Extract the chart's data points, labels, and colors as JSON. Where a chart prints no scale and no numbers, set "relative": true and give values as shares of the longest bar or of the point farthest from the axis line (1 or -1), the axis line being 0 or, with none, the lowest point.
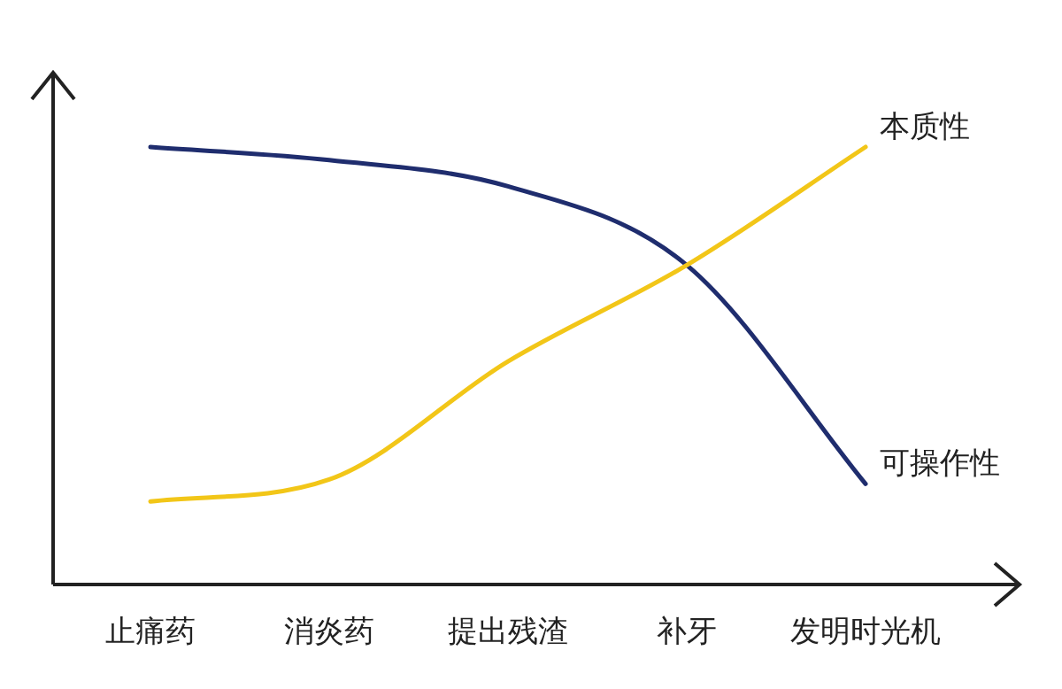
{
  "chart_data": {
    "type": "line",
    "relative": true,
    "categories": [
      "止痛药",
      "消炎药",
      "提出残渣",
      "补牙",
      "发明时光机"
    ],
    "series": [
      {
        "name": "可操作性",
        "color": "#1f2d6e",
        "values": [
          1.0,
          0.97,
          0.91,
          0.73,
          0.23
        ]
      },
      {
        "name": "本质性",
        "color": "#f2c618",
        "values": [
          0.19,
          0.24,
          0.51,
          0.73,
          1.0
        ]
      }
    ],
    "marker": "none",
    "line_style": "solid"
  }
}
